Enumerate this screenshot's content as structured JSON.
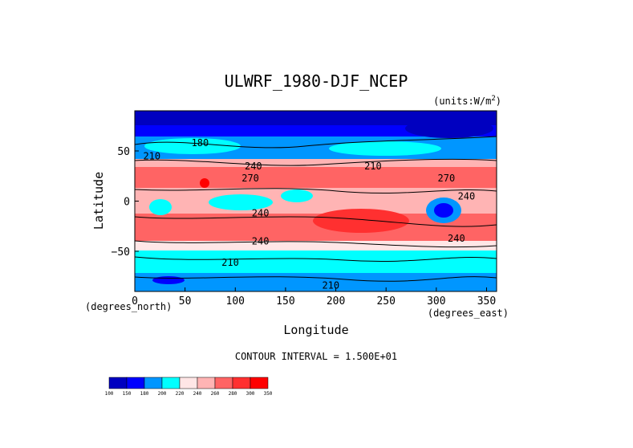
{
  "chart_data": {
    "type": "heatmap",
    "title": "ULWRF_1980-DJF_NCEP",
    "units_label": "(units:W/m^2)",
    "xlabel": "Longitude",
    "ylabel": "Latitude",
    "x_unit_label": "(degrees_east)",
    "y_unit_label": "(degrees_north)",
    "xlim": [
      0,
      360
    ],
    "ylim": [
      -90,
      90
    ],
    "x_ticks": [
      0,
      50,
      100,
      150,
      200,
      250,
      300,
      350
    ],
    "y_ticks": [
      50,
      0,
      -50
    ],
    "y_tick_labels": [
      "50",
      "0",
      "−50"
    ],
    "contour_interval_text": "CONTOUR INTERVAL = 1.500E+01",
    "colorbar": {
      "levels": [
        "100",
        "150",
        "180",
        "200",
        "220",
        "240",
        "260",
        "280",
        "300",
        "350"
      ],
      "colors": [
        "#0000c0",
        "#0000ff",
        "#0096ff",
        "#00ffff",
        "#ffe6e6",
        "#ffb4b4",
        "#ff6464",
        "#ff3030",
        "#ff0000"
      ]
    },
    "contour_labels": [
      {
        "text": "180",
        "lon": 65,
        "lat": 58
      },
      {
        "text": "210",
        "lon": 17,
        "lat": 45
      },
      {
        "text": "210",
        "lon": 237,
        "lat": 35
      },
      {
        "text": "240",
        "lon": 118,
        "lat": 35
      },
      {
        "text": "270",
        "lon": 115,
        "lat": 23
      },
      {
        "text": "270",
        "lon": 310,
        "lat": 23
      },
      {
        "text": "240",
        "lon": 330,
        "lat": 5
      },
      {
        "text": "240",
        "lon": 125,
        "lat": -12
      },
      {
        "text": "240",
        "lon": 125,
        "lat": -40
      },
      {
        "text": "240",
        "lon": 320,
        "lat": -37
      },
      {
        "text": "210",
        "lon": 95,
        "lat": -61
      },
      {
        "text": "210",
        "lon": 195,
        "lat": -84
      }
    ]
  }
}
